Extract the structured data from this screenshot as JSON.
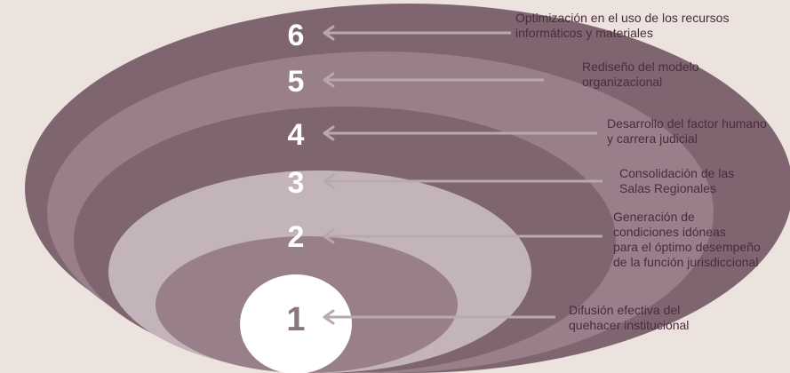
{
  "colors": {
    "background": "#ede3de",
    "ring_dark": "#7f6570",
    "ring_mid": "#987f89",
    "ring_light": "#c3b4bb",
    "center": "#ffffff",
    "arrow": "#b8a8b0",
    "label_text": "#4a2c3c"
  },
  "levels": [
    {
      "number": "1",
      "line1": "Difusión efectiva del",
      "line2": " quehacer  institucional",
      "line3": "",
      "line4": ""
    },
    {
      "number": "2",
      "line1": "Generación de",
      "line2": " condiciones idóneas",
      "line3": "para el óptimo desempeño",
      "line4": "de la función jurisdiccional"
    },
    {
      "number": "3",
      "line1": "Consolidación de las",
      "line2": "Salas Regionales",
      "line3": "",
      "line4": ""
    },
    {
      "number": "4",
      "line1": "Desarrollo del  factor humano",
      "line2": "y carrera judicial",
      "line3": "",
      "line4": ""
    },
    {
      "number": "5",
      "line1": "Rediseño del modelo",
      "line2": " organizacional",
      "line3": "",
      "line4": ""
    },
    {
      "number": "6",
      "line1": "Optimización en el  uso de los recursos",
      "line2": " informáticos y materiales",
      "line3": "",
      "line4": ""
    }
  ]
}
